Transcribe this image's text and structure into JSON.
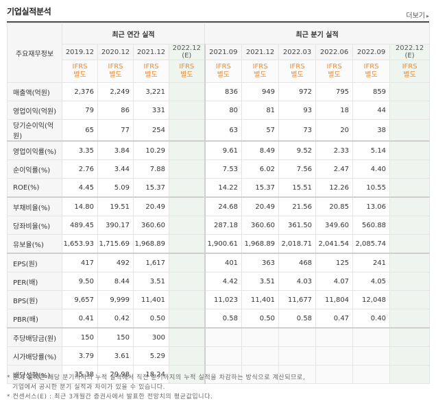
{
  "title": "기업실적분석",
  "more_label": "더보기",
  "header": {
    "corner": "주요재무정보",
    "annual_group": "최근 연간 실적",
    "quarter_group": "최근 분기 실적",
    "annual_periods": [
      "2019.12",
      "2020.12",
      "2021.12",
      "2022.12\n(E)"
    ],
    "quarter_periods": [
      "2021.09",
      "2021.12",
      "2022.03",
      "2022.06",
      "2022.09",
      "2022.12 (E)"
    ],
    "ifrs_label": "IFRS\n별도"
  },
  "rows": [
    {
      "label": "매출액(억원)",
      "annual": [
        "2,376",
        "2,249",
        "3,221",
        ""
      ],
      "quarter": [
        "836",
        "949",
        "972",
        "795",
        "859",
        ""
      ]
    },
    {
      "label": "영업이익(억원)",
      "annual": [
        "79",
        "86",
        "331",
        ""
      ],
      "quarter": [
        "80",
        "81",
        "93",
        "18",
        "44",
        ""
      ]
    },
    {
      "label": "당기순이익(억원)",
      "annual": [
        "65",
        "77",
        "254",
        ""
      ],
      "quarter": [
        "63",
        "57",
        "73",
        "20",
        "38",
        ""
      ]
    },
    {
      "label": "영업이익률(%)",
      "annual": [
        "3.35",
        "3.84",
        "10.29",
        ""
      ],
      "quarter": [
        "9.61",
        "8.49",
        "9.52",
        "2.33",
        "5.14",
        ""
      ]
    },
    {
      "label": "순이익률(%)",
      "annual": [
        "2.76",
        "3.44",
        "7.88",
        ""
      ],
      "quarter": [
        "7.53",
        "6.02",
        "7.56",
        "2.47",
        "4.40",
        ""
      ]
    },
    {
      "label": "ROE(%)",
      "annual": [
        "4.45",
        "5.09",
        "15.37",
        ""
      ],
      "quarter": [
        "14.22",
        "15.37",
        "15.51",
        "12.26",
        "10.55",
        ""
      ]
    },
    {
      "label": "부채비율(%)",
      "annual": [
        "14.80",
        "19.51",
        "20.49",
        ""
      ],
      "quarter": [
        "24.68",
        "20.49",
        "21.56",
        "20.85",
        "13.06",
        ""
      ]
    },
    {
      "label": "당좌비율(%)",
      "annual": [
        "489.45",
        "390.17",
        "360.60",
        ""
      ],
      "quarter": [
        "287.18",
        "360.60",
        "361.50",
        "349.60",
        "560.88",
        ""
      ]
    },
    {
      "label": "유보율(%)",
      "annual": [
        "1,653.93",
        "1,715.69",
        "1,968.89",
        ""
      ],
      "quarter": [
        "1,900.61",
        "1,968.89",
        "2,018.71",
        "2,041.54",
        "2,085.74",
        ""
      ]
    },
    {
      "label": "EPS(원)",
      "annual": [
        "417",
        "492",
        "1,617",
        ""
      ],
      "quarter": [
        "401",
        "363",
        "468",
        "125",
        "241",
        ""
      ]
    },
    {
      "label": "PER(배)",
      "annual": [
        "9.50",
        "8.44",
        "3.51",
        ""
      ],
      "quarter": [
        "4.42",
        "3.51",
        "4.03",
        "4.07",
        "4.05",
        ""
      ]
    },
    {
      "label": "BPS(원)",
      "annual": [
        "9,657",
        "9,999",
        "11,401",
        ""
      ],
      "quarter": [
        "11,023",
        "11,401",
        "11,677",
        "11,804",
        "12,048",
        ""
      ]
    },
    {
      "label": "PBR(배)",
      "annual": [
        "0.41",
        "0.42",
        "0.50",
        ""
      ],
      "quarter": [
        "0.58",
        "0.50",
        "0.58",
        "0.47",
        "0.40",
        ""
      ]
    },
    {
      "label": "주당배당금(원)",
      "annual": [
        "150",
        "150",
        "300",
        ""
      ],
      "quarter": [
        "",
        "",
        "",
        "",
        "",
        ""
      ]
    },
    {
      "label": "시가배당률(%)",
      "annual": [
        "3.79",
        "3.61",
        "5.29",
        ""
      ],
      "quarter": [
        "",
        "",
        "",
        "",
        "",
        ""
      ]
    },
    {
      "label": "배당성향(%)",
      "annual": [
        "35.38",
        "29.98",
        "18.24",
        ""
      ],
      "quarter": [
        "",
        "",
        "",
        "",
        "",
        ""
      ]
    }
  ],
  "notes": [
    "* 분기 실적은 해당 분기까지의 누적 실적에서 직전 분기까지의 누적 실적을 차감하는 방식으로 계산되므로,",
    "  기업에서 공시한 분기 실적과 차이가 있을 수 있습니다.",
    "* 컨센서스(E) : 최근 3개월간 증권사에서 발표한 전망치의 평균값입니다."
  ]
}
